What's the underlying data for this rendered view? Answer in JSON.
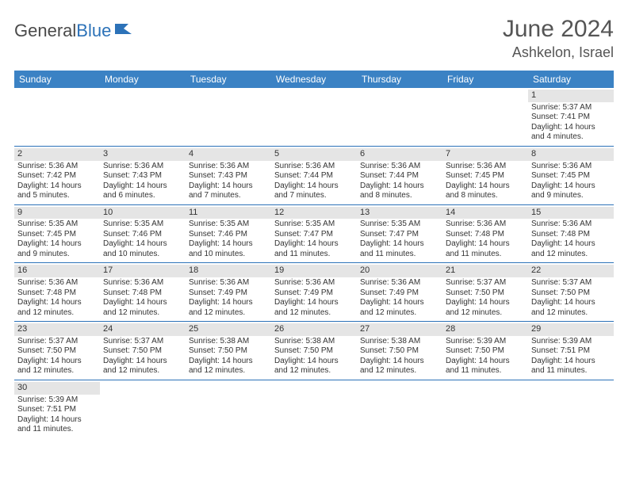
{
  "logo": {
    "general": "General",
    "blue": "Blue"
  },
  "title": "June 2024",
  "location": "Ashkelon, Israel",
  "colors": {
    "header_bg": "#3b82c4",
    "header_text": "#ffffff",
    "row_divider": "#2c72b8",
    "daynum_bg": "#e5e5e5",
    "body_text": "#333333",
    "logo_gray": "#4a4a4a",
    "logo_blue": "#2c72b8",
    "title_gray": "#555555"
  },
  "dayHeaders": [
    "Sunday",
    "Monday",
    "Tuesday",
    "Wednesday",
    "Thursday",
    "Friday",
    "Saturday"
  ],
  "weeks": [
    [
      null,
      null,
      null,
      null,
      null,
      null,
      {
        "n": 1,
        "sr": "5:37 AM",
        "ss": "7:41 PM",
        "dl": "14 hours and 4 minutes."
      }
    ],
    [
      {
        "n": 2,
        "sr": "5:36 AM",
        "ss": "7:42 PM",
        "dl": "14 hours and 5 minutes."
      },
      {
        "n": 3,
        "sr": "5:36 AM",
        "ss": "7:43 PM",
        "dl": "14 hours and 6 minutes."
      },
      {
        "n": 4,
        "sr": "5:36 AM",
        "ss": "7:43 PM",
        "dl": "14 hours and 7 minutes."
      },
      {
        "n": 5,
        "sr": "5:36 AM",
        "ss": "7:44 PM",
        "dl": "14 hours and 7 minutes."
      },
      {
        "n": 6,
        "sr": "5:36 AM",
        "ss": "7:44 PM",
        "dl": "14 hours and 8 minutes."
      },
      {
        "n": 7,
        "sr": "5:36 AM",
        "ss": "7:45 PM",
        "dl": "14 hours and 8 minutes."
      },
      {
        "n": 8,
        "sr": "5:36 AM",
        "ss": "7:45 PM",
        "dl": "14 hours and 9 minutes."
      }
    ],
    [
      {
        "n": 9,
        "sr": "5:35 AM",
        "ss": "7:45 PM",
        "dl": "14 hours and 9 minutes."
      },
      {
        "n": 10,
        "sr": "5:35 AM",
        "ss": "7:46 PM",
        "dl": "14 hours and 10 minutes."
      },
      {
        "n": 11,
        "sr": "5:35 AM",
        "ss": "7:46 PM",
        "dl": "14 hours and 10 minutes."
      },
      {
        "n": 12,
        "sr": "5:35 AM",
        "ss": "7:47 PM",
        "dl": "14 hours and 11 minutes."
      },
      {
        "n": 13,
        "sr": "5:35 AM",
        "ss": "7:47 PM",
        "dl": "14 hours and 11 minutes."
      },
      {
        "n": 14,
        "sr": "5:36 AM",
        "ss": "7:48 PM",
        "dl": "14 hours and 11 minutes."
      },
      {
        "n": 15,
        "sr": "5:36 AM",
        "ss": "7:48 PM",
        "dl": "14 hours and 12 minutes."
      }
    ],
    [
      {
        "n": 16,
        "sr": "5:36 AM",
        "ss": "7:48 PM",
        "dl": "14 hours and 12 minutes."
      },
      {
        "n": 17,
        "sr": "5:36 AM",
        "ss": "7:48 PM",
        "dl": "14 hours and 12 minutes."
      },
      {
        "n": 18,
        "sr": "5:36 AM",
        "ss": "7:49 PM",
        "dl": "14 hours and 12 minutes."
      },
      {
        "n": 19,
        "sr": "5:36 AM",
        "ss": "7:49 PM",
        "dl": "14 hours and 12 minutes."
      },
      {
        "n": 20,
        "sr": "5:36 AM",
        "ss": "7:49 PM",
        "dl": "14 hours and 12 minutes."
      },
      {
        "n": 21,
        "sr": "5:37 AM",
        "ss": "7:50 PM",
        "dl": "14 hours and 12 minutes."
      },
      {
        "n": 22,
        "sr": "5:37 AM",
        "ss": "7:50 PM",
        "dl": "14 hours and 12 minutes."
      }
    ],
    [
      {
        "n": 23,
        "sr": "5:37 AM",
        "ss": "7:50 PM",
        "dl": "14 hours and 12 minutes."
      },
      {
        "n": 24,
        "sr": "5:37 AM",
        "ss": "7:50 PM",
        "dl": "14 hours and 12 minutes."
      },
      {
        "n": 25,
        "sr": "5:38 AM",
        "ss": "7:50 PM",
        "dl": "14 hours and 12 minutes."
      },
      {
        "n": 26,
        "sr": "5:38 AM",
        "ss": "7:50 PM",
        "dl": "14 hours and 12 minutes."
      },
      {
        "n": 27,
        "sr": "5:38 AM",
        "ss": "7:50 PM",
        "dl": "14 hours and 12 minutes."
      },
      {
        "n": 28,
        "sr": "5:39 AM",
        "ss": "7:50 PM",
        "dl": "14 hours and 11 minutes."
      },
      {
        "n": 29,
        "sr": "5:39 AM",
        "ss": "7:51 PM",
        "dl": "14 hours and 11 minutes."
      }
    ],
    [
      {
        "n": 30,
        "sr": "5:39 AM",
        "ss": "7:51 PM",
        "dl": "14 hours and 11 minutes."
      },
      null,
      null,
      null,
      null,
      null,
      null
    ]
  ],
  "labels": {
    "sunrise": "Sunrise:",
    "sunset": "Sunset:",
    "daylight": "Daylight:"
  }
}
